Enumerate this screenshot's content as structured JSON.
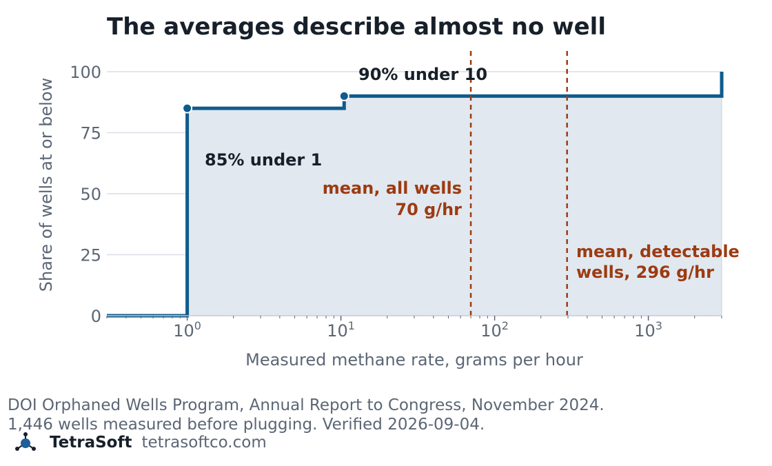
{
  "chart_data": {
    "type": "line",
    "title": "The averages describe almost no well",
    "xlabel": "Measured methane rate, grams per hour",
    "ylabel": "Share of wells at or below",
    "x_scale": "log",
    "xlim": [
      0.3,
      3000
    ],
    "ylim": [
      0,
      100
    ],
    "x_ticks": [
      1,
      10,
      100,
      1000
    ],
    "x_tick_labels": [
      {
        "base": "10",
        "exp": "0"
      },
      {
        "base": "10",
        "exp": "1"
      },
      {
        "base": "10",
        "exp": "2"
      },
      {
        "base": "10",
        "exp": "3"
      }
    ],
    "y_ticks": [
      0,
      25,
      50,
      75,
      100
    ],
    "grid": "horizontal",
    "series": [
      {
        "type": "step",
        "color": "#0f5b8c",
        "fill": "#e1e8ef",
        "x": [
          0.3,
          1,
          1,
          10.5,
          10.5,
          3000,
          3000
        ],
        "y": [
          0,
          0,
          85,
          85,
          90,
          90,
          100
        ]
      }
    ],
    "markers": [
      {
        "x": 1,
        "y": 85
      },
      {
        "x": 10.5,
        "y": 90
      }
    ],
    "annotations": [
      {
        "text": "85% under 1"
      },
      {
        "text": "90% under 10"
      }
    ],
    "reference_lines": [
      {
        "x": 70,
        "color": "#9c3b12",
        "style": "dashed",
        "label": [
          "mean, all wells",
          "70 g/hr"
        ]
      },
      {
        "x": 296,
        "color": "#9c3b12",
        "style": "dashed",
        "label": [
          "mean, detectable",
          "wells, 296 g/hr"
        ]
      }
    ]
  },
  "footer": {
    "source_line1": "DOI Orphaned Wells Program, Annual Report to Congress, November 2024.",
    "source_line2": "1,446 wells measured before plugging. Verified 2026-09-04.",
    "brand_name": "TetraSoft",
    "brand_url": "tetrasoftco.com",
    "logo_icon": "tetrasoft-molecule-logo"
  }
}
